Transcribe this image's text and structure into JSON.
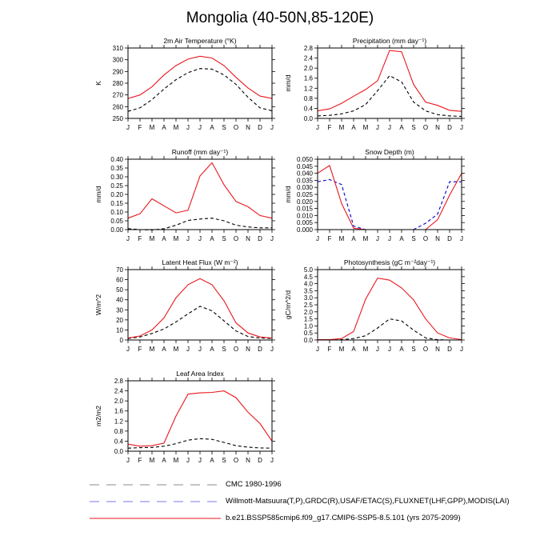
{
  "figure": {
    "title": "Mongolia (40-50N,85-120E)",
    "months": [
      "J",
      "F",
      "M",
      "A",
      "M",
      "J",
      "J",
      "A",
      "S",
      "O",
      "N",
      "D",
      "J"
    ],
    "colors": {
      "cmc": "#000000",
      "obs": "#0000cc",
      "model": "#e8181e"
    }
  },
  "legend": [
    {
      "key": "cmc",
      "label": "CMC 1980-1996",
      "style": "dashed",
      "color": "#888888"
    },
    {
      "key": "obs",
      "label": "Willmott-Matsuura(T,P),GRDC(R),USAF/ETAC(S),FLUXNET(LHF,GPP),MODIS(LAI)",
      "style": "dashed",
      "color": "#7777ee"
    },
    {
      "key": "model",
      "label": "b.e21.BSSP585cmip6.f09_g17.CMIP6-SSP5-8.5.101 (yrs 2075-2099)",
      "style": "solid",
      "color": "#e8181e"
    }
  ],
  "chart_data": [
    {
      "type": "line",
      "title": "2m Air Temperature (°K)",
      "ylabel": "K",
      "ylim": [
        250,
        310
      ],
      "yticks": [
        250,
        260,
        270,
        280,
        290,
        300,
        310
      ],
      "ytick_labels": [
        "250",
        "260",
        "270",
        "280",
        "290",
        "300",
        "310"
      ],
      "series": [
        {
          "key": "cmc",
          "values": [
            256,
            259,
            266,
            275,
            283,
            289,
            292.5,
            292,
            287,
            279,
            268,
            259,
            256.5
          ]
        },
        {
          "key": "model",
          "values": [
            267,
            270,
            277,
            287,
            295,
            300.5,
            303,
            301.5,
            295,
            285,
            276,
            269,
            267
          ]
        }
      ]
    },
    {
      "type": "line",
      "title": "Precipitation (mm day⁻¹)",
      "ylabel": "mm/d",
      "ylim": [
        0,
        2.8
      ],
      "yticks": [
        0,
        0.4,
        0.8,
        1.2,
        1.6,
        2.0,
        2.4,
        2.8
      ],
      "ytick_labels": [
        "0.0",
        "0.4",
        "0.8",
        "1.2",
        "1.6",
        "2.0",
        "2.4",
        "2.8"
      ],
      "series": [
        {
          "key": "cmc",
          "values": [
            0.1,
            0.12,
            0.18,
            0.3,
            0.55,
            1.1,
            1.7,
            1.45,
            0.65,
            0.3,
            0.15,
            0.1,
            0.08
          ]
        },
        {
          "key": "model",
          "values": [
            0.3,
            0.38,
            0.6,
            0.88,
            1.15,
            1.5,
            2.7,
            2.65,
            1.35,
            0.65,
            0.52,
            0.32,
            0.28
          ]
        }
      ]
    },
    {
      "type": "line",
      "title": "Runoff (mm day⁻¹)",
      "ylabel": "mm/d",
      "ylim": [
        0,
        0.4
      ],
      "yticks": [
        0,
        0.05,
        0.1,
        0.15,
        0.2,
        0.25,
        0.3,
        0.35,
        0.4
      ],
      "ytick_labels": [
        "0.00",
        "0.05",
        "0.10",
        "0.15",
        "0.20",
        "0.25",
        "0.30",
        "0.35",
        "0.40"
      ],
      "series": [
        {
          "key": "cmc",
          "values": [
            0.005,
            0.0,
            -0.002,
            0.005,
            0.025,
            0.052,
            0.06,
            0.065,
            0.05,
            0.025,
            0.015,
            0.01,
            0.01
          ]
        },
        {
          "key": "model",
          "values": [
            0.065,
            0.09,
            0.175,
            0.135,
            0.095,
            0.11,
            0.305,
            0.38,
            0.255,
            0.16,
            0.13,
            0.08,
            0.065
          ]
        }
      ]
    },
    {
      "type": "line",
      "title": "Snow Depth (m)",
      "ylabel": "mm/d",
      "ylim": [
        0,
        0.05
      ],
      "yticks": [
        0,
        0.005,
        0.01,
        0.015,
        0.02,
        0.025,
        0.03,
        0.035,
        0.04,
        0.045,
        0.05
      ],
      "ytick_labels": [
        "0.000",
        "0.005",
        "0.010",
        "0.015",
        "0.020",
        "0.025",
        "0.030",
        "0.035",
        "0.040",
        "0.045",
        "0.050"
      ],
      "series": [
        {
          "key": "obs",
          "values": [
            0.034,
            0.0355,
            0.032,
            0.0025,
            0.0,
            0.0,
            0.0,
            0.0,
            0.0,
            0.0045,
            0.011,
            0.034,
            0.034
          ]
        },
        {
          "key": "model",
          "values": [
            0.04,
            0.0455,
            0.0185,
            0.001,
            0.0,
            0.0,
            0.0,
            0.0,
            0.0,
            0.0,
            0.007,
            0.0245,
            0.04
          ]
        }
      ]
    },
    {
      "type": "line",
      "title": "Latent Heat Flux (W m⁻²)",
      "ylabel": "W/m^2",
      "ylim": [
        0,
        70
      ],
      "yticks": [
        0,
        10,
        20,
        30,
        40,
        50,
        60,
        70
      ],
      "ytick_labels": [
        "0",
        "10",
        "20",
        "30",
        "40",
        "50",
        "60",
        "70"
      ],
      "series": [
        {
          "key": "cmc",
          "values": [
            1.5,
            3,
            6.5,
            11,
            18,
            26,
            33.5,
            29,
            19,
            9,
            3.5,
            2,
            1.5
          ]
        },
        {
          "key": "model",
          "values": [
            2,
            4,
            10,
            22,
            42,
            55,
            61,
            55,
            39,
            17,
            7,
            3,
            2
          ]
        }
      ]
    },
    {
      "type": "line",
      "title": "Photosynthesis (gC m⁻²day⁻¹)",
      "ylabel": "gC/m^2/d",
      "ylim": [
        0,
        5
      ],
      "yticks": [
        0,
        0.5,
        1,
        1.5,
        2,
        2.5,
        3,
        3.5,
        4,
        4.5,
        5
      ],
      "ytick_labels": [
        "0.0",
        "0.5",
        "1.0",
        "1.5",
        "2.0",
        "2.5",
        "3.0",
        "3.5",
        "4.0",
        "4.5",
        "5.0"
      ],
      "series": [
        {
          "key": "cmc",
          "values": [
            0.0,
            0.0,
            0.02,
            0.1,
            0.3,
            0.85,
            1.5,
            1.35,
            0.7,
            0.15,
            0.02,
            0.0,
            0.0
          ]
        },
        {
          "key": "model",
          "values": [
            0.02,
            0.03,
            0.1,
            0.6,
            2.9,
            4.4,
            4.25,
            3.7,
            2.85,
            1.5,
            0.5,
            0.15,
            0.03
          ]
        }
      ]
    },
    {
      "type": "line",
      "title": "Leaf Area Index",
      "ylabel": "m2/m2",
      "ylim": [
        0,
        2.8
      ],
      "yticks": [
        0,
        0.4,
        0.8,
        1.2,
        1.6,
        2.0,
        2.4,
        2.8
      ],
      "ytick_labels": [
        "0.0",
        "0.4",
        "0.8",
        "1.2",
        "1.6",
        "2.0",
        "2.4",
        "2.8"
      ],
      "series": [
        {
          "key": "cmc",
          "values": [
            0.12,
            0.14,
            0.15,
            0.2,
            0.3,
            0.44,
            0.5,
            0.47,
            0.35,
            0.22,
            0.16,
            0.13,
            0.12
          ]
        },
        {
          "key": "model",
          "values": [
            0.28,
            0.2,
            0.22,
            0.32,
            1.4,
            2.27,
            2.32,
            2.34,
            2.4,
            2.13,
            1.55,
            1.1,
            0.4
          ]
        }
      ]
    }
  ]
}
